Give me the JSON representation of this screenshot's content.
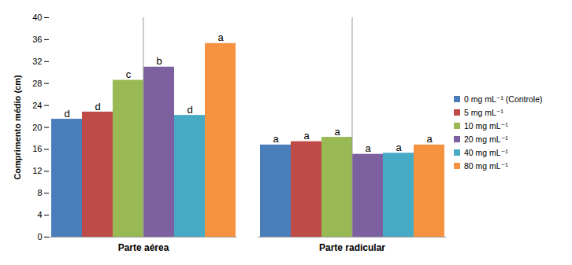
{
  "chart_data": {
    "type": "bar",
    "y_label": "Comprimento médio (cm)",
    "categories": [
      "Parte aérea",
      "Parte radicular"
    ],
    "series": [
      {
        "name": "0 mg mL⁻¹ (Controle)",
        "color": "#4a7ebb",
        "values": [
          21.5,
          16.8
        ],
        "letters": [
          "d",
          "a"
        ]
      },
      {
        "name": "5 mg mL⁻¹",
        "color": "#be4b48",
        "values": [
          22.8,
          17.4
        ],
        "letters": [
          "d",
          "a"
        ]
      },
      {
        "name": "10 mg mL⁻¹",
        "color": "#98b954",
        "values": [
          28.6,
          18.2
        ],
        "letters": [
          "c",
          "a"
        ]
      },
      {
        "name": "20 mg mL⁻¹",
        "color": "#7d60a0",
        "values": [
          31.0,
          15.1
        ],
        "letters": [
          "b",
          "a"
        ]
      },
      {
        "name": "40 mg mL⁻¹",
        "color": "#46aac5",
        "values": [
          22.2,
          15.3
        ],
        "letters": [
          "d",
          "a"
        ]
      },
      {
        "name": "80 mg mL⁻¹",
        "color": "#f69240",
        "values": [
          35.3,
          16.8
        ],
        "letters": [
          "a",
          "a"
        ]
      }
    ],
    "ylim": [
      0,
      40
    ],
    "yticks": [
      0,
      4,
      8,
      12,
      16,
      20,
      24,
      28,
      32,
      36,
      40
    ],
    "grid": false,
    "legend": "right"
  }
}
